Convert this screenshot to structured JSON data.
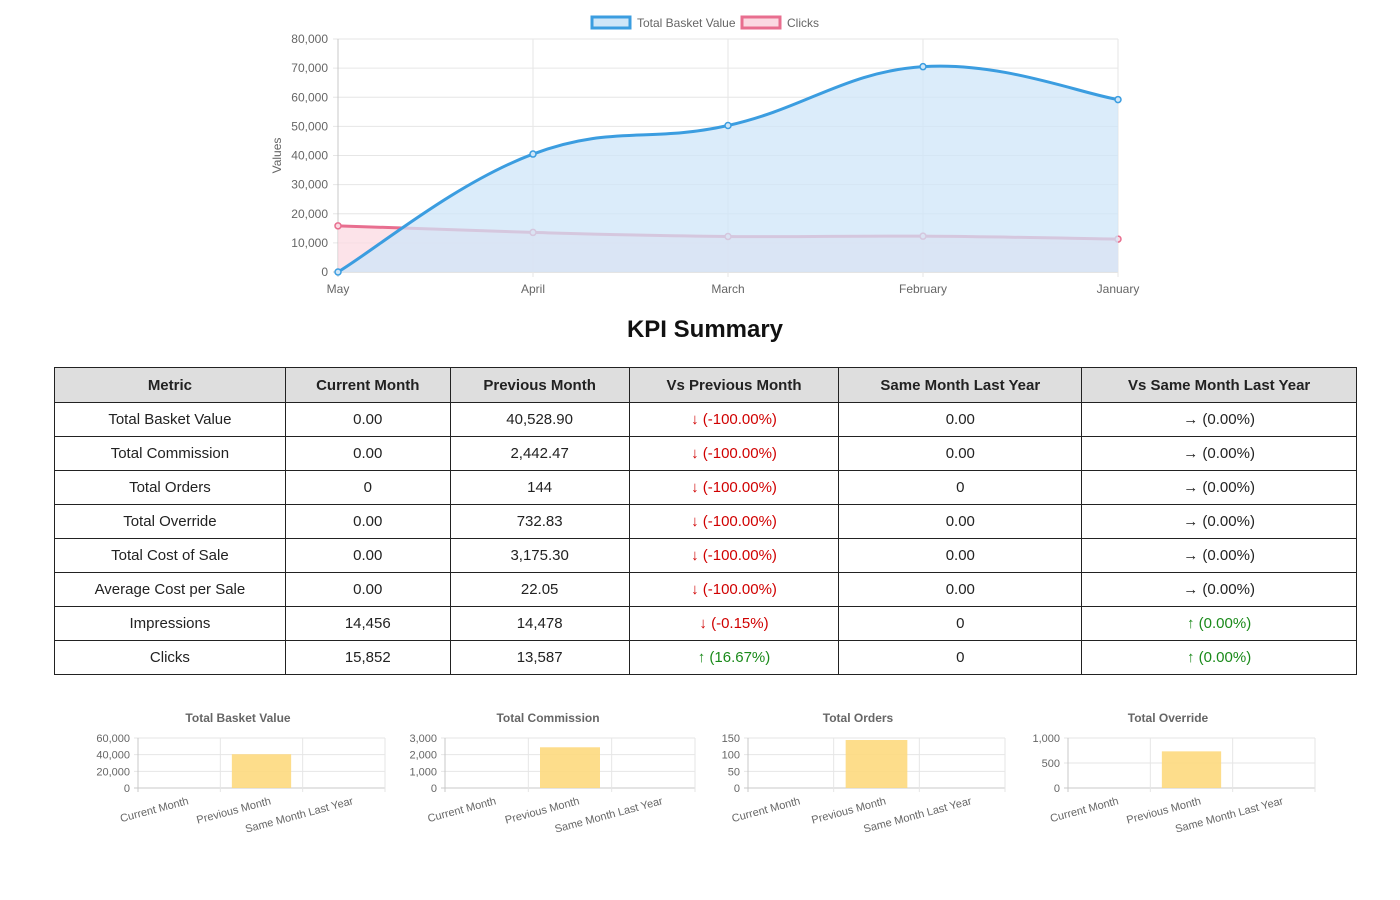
{
  "chart_data": [
    {
      "type": "area",
      "categories": [
        "May",
        "April",
        "March",
        "February",
        "January"
      ],
      "series": [
        {
          "name": "Total Basket Value",
          "values": [
            0,
            40500,
            50300,
            70500,
            59200
          ],
          "color": "#3b9de0",
          "fill": "#cfe6f8"
        },
        {
          "name": "Clicks",
          "values": [
            15852,
            13587,
            12200,
            12300,
            11300
          ],
          "color": "#e86e8f",
          "fill": "#fbd9e2"
        }
      ],
      "ylabel": "Values",
      "ylim": [
        0,
        80000
      ],
      "yticks": [
        "0",
        "10,000",
        "20,000",
        "30,000",
        "40,000",
        "50,000",
        "60,000",
        "70,000",
        "80,000"
      ],
      "grid": true,
      "legend": "top-center"
    },
    {
      "type": "bar",
      "title": "Total Basket Value",
      "categories": [
        "Current Month",
        "Previous Month",
        "Same Month Last Year"
      ],
      "values": [
        0,
        40528.9,
        0
      ],
      "ylim": [
        0,
        60000
      ],
      "yticks": [
        "0",
        "20,000",
        "40,000",
        "60,000"
      ],
      "color": "#fdd97e"
    },
    {
      "type": "bar",
      "title": "Total Commission",
      "categories": [
        "Current Month",
        "Previous Month",
        "Same Month Last Year"
      ],
      "values": [
        0,
        2442.47,
        0
      ],
      "ylim": [
        0,
        3000
      ],
      "yticks": [
        "0",
        "1,000",
        "2,000",
        "3,000"
      ],
      "color": "#fdd97e"
    },
    {
      "type": "bar",
      "title": "Total Orders",
      "categories": [
        "Current Month",
        "Previous Month",
        "Same Month Last Year"
      ],
      "values": [
        0,
        144,
        0
      ],
      "ylim": [
        0,
        150
      ],
      "yticks": [
        "0",
        "50",
        "100",
        "150"
      ],
      "color": "#fdd97e"
    },
    {
      "type": "bar",
      "title": "Total Override",
      "categories": [
        "Current Month",
        "Previous Month",
        "Same Month Last Year"
      ],
      "values": [
        0,
        732.83,
        0
      ],
      "ylim": [
        0,
        1000
      ],
      "yticks": [
        "0",
        "500",
        "1,000"
      ],
      "color": "#fdd97e"
    }
  ],
  "kpi": {
    "title": "KPI Summary",
    "headers": [
      "Metric",
      "Current Month",
      "Previous Month",
      "Vs Previous Month",
      "Same Month Last Year",
      "Vs Same Month Last Year"
    ],
    "rows": [
      {
        "metric": "Total Basket Value",
        "current": "0.00",
        "previous": "40,528.90",
        "vs_prev": "↓ (-100.00%)",
        "vs_prev_dir": "down",
        "last_year": "0.00",
        "vs_last_year": "→ (0.00%)",
        "vs_last_year_dir": "flat"
      },
      {
        "metric": "Total Commission",
        "current": "0.00",
        "previous": "2,442.47",
        "vs_prev": "↓ (-100.00%)",
        "vs_prev_dir": "down",
        "last_year": "0.00",
        "vs_last_year": "→ (0.00%)",
        "vs_last_year_dir": "flat"
      },
      {
        "metric": "Total Orders",
        "current": "0",
        "previous": "144",
        "vs_prev": "↓ (-100.00%)",
        "vs_prev_dir": "down",
        "last_year": "0",
        "vs_last_year": "→ (0.00%)",
        "vs_last_year_dir": "flat"
      },
      {
        "metric": "Total Override",
        "current": "0.00",
        "previous": "732.83",
        "vs_prev": "↓ (-100.00%)",
        "vs_prev_dir": "down",
        "last_year": "0.00",
        "vs_last_year": "→ (0.00%)",
        "vs_last_year_dir": "flat"
      },
      {
        "metric": "Total Cost of Sale",
        "current": "0.00",
        "previous": "3,175.30",
        "vs_prev": "↓ (-100.00%)",
        "vs_prev_dir": "down",
        "last_year": "0.00",
        "vs_last_year": "→ (0.00%)",
        "vs_last_year_dir": "flat"
      },
      {
        "metric": "Average Cost per Sale",
        "current": "0.00",
        "previous": "22.05",
        "vs_prev": "↓ (-100.00%)",
        "vs_prev_dir": "down",
        "last_year": "0.00",
        "vs_last_year": "→ (0.00%)",
        "vs_last_year_dir": "flat"
      },
      {
        "metric": "Impressions",
        "current": "14,456",
        "previous": "14,478",
        "vs_prev": "↓ (-0.15%)",
        "vs_prev_dir": "down",
        "last_year": "0",
        "vs_last_year": "↑ (0.00%)",
        "vs_last_year_dir": "up"
      },
      {
        "metric": "Clicks",
        "current": "15,852",
        "previous": "13,587",
        "vs_prev": "↑ (16.67%)",
        "vs_prev_dir": "up",
        "last_year": "0",
        "vs_last_year": "↑ (0.00%)",
        "vs_last_year_dir": "up"
      }
    ]
  }
}
